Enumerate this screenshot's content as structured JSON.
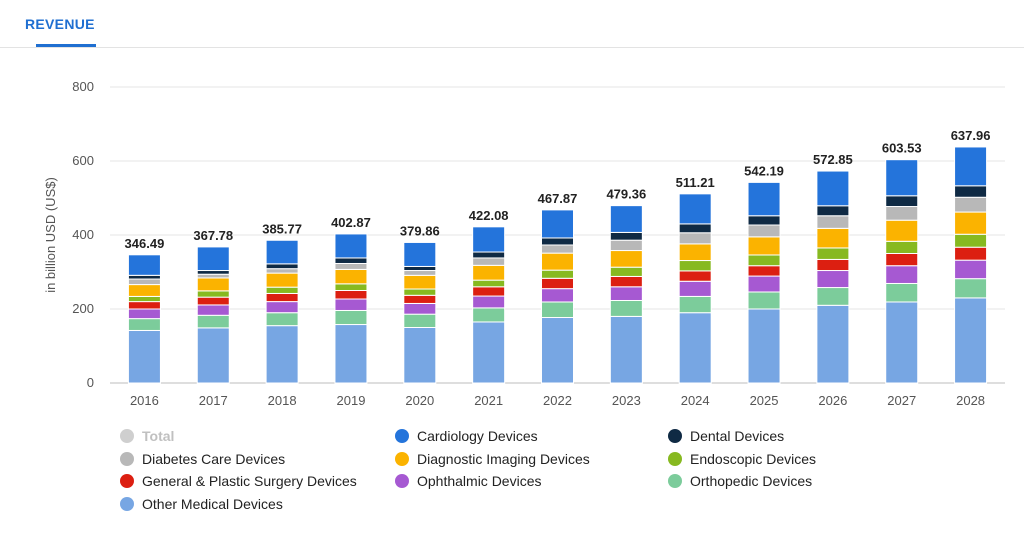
{
  "tab": {
    "label": "REVENUE"
  },
  "chart_data": {
    "type": "bar",
    "stacked": true,
    "ylabel": "in billion USD (US$)",
    "ylim": [
      0,
      800
    ],
    "yticks": [
      0,
      200,
      400,
      600,
      800
    ],
    "grid": true,
    "legend_position": "bottom",
    "categories": [
      "2016",
      "2017",
      "2018",
      "2019",
      "2020",
      "2021",
      "2022",
      "2023",
      "2024",
      "2025",
      "2026",
      "2027",
      "2028"
    ],
    "totals": [
      346.49,
      367.78,
      385.77,
      402.87,
      379.86,
      422.08,
      467.87,
      479.36,
      511.21,
      542.19,
      572.85,
      603.53,
      637.96
    ],
    "total_labels": [
      "346.49",
      "367.78",
      "385.77",
      "402.87",
      "379.86",
      "422.08",
      "467.87",
      "479.36",
      "511.21",
      "542.19",
      "572.85",
      "603.53",
      "637.96"
    ],
    "series": [
      {
        "name": "Other Medical Devices",
        "color": "#77a6e3",
        "values": [
          142,
          149,
          155,
          158,
          150,
          165,
          177,
          180,
          190,
          200,
          210,
          219,
          230
        ]
      },
      {
        "name": "Orthopedic Devices",
        "color": "#7ccc9b",
        "values": [
          32,
          34,
          35,
          38,
          36,
          38,
          42,
          43,
          44,
          46,
          48,
          50,
          52
        ]
      },
      {
        "name": "Ophthalmic Devices",
        "color": "#a659d2",
        "values": [
          26,
          28,
          30,
          31,
          29,
          32,
          36,
          37,
          41,
          43,
          46,
          48,
          50
        ]
      },
      {
        "name": "General & Plastic Surgery Devices",
        "color": "#dc1f11",
        "values": [
          20,
          21,
          22,
          23,
          22,
          25,
          28,
          28,
          28,
          28,
          30,
          33,
          35
        ]
      },
      {
        "name": "Endoscopic Devices",
        "color": "#87b920",
        "values": [
          14,
          17,
          17,
          18,
          17,
          18,
          22,
          25,
          28,
          29,
          31,
          33,
          35
        ]
      },
      {
        "name": "Diagnostic Imaging Devices",
        "color": "#fbb300",
        "values": [
          32,
          35,
          38,
          39,
          37,
          40,
          46,
          45,
          45,
          49,
          53,
          57,
          60
        ]
      },
      {
        "name": "Diabetes Care Devices",
        "color": "#b8b8b8",
        "values": [
          15,
          10,
          12,
          16,
          13,
          20,
          22,
          28,
          30,
          32,
          34,
          37,
          40
        ]
      },
      {
        "name": "Dental Devices",
        "color": "#0f2a44",
        "values": [
          10,
          10,
          13,
          15,
          11,
          16,
          19,
          21,
          24,
          25,
          27,
          29,
          31
        ]
      },
      {
        "name": "Cardiology Devices",
        "color": "#2474db",
        "values": [
          55.49,
          63.78,
          63.77,
          64.87,
          64.86,
          68.08,
          75.87,
          72.36,
          81.21,
          90.19,
          93.85,
          97.53,
          104.96
        ]
      }
    ]
  },
  "legend": [
    {
      "label": "Total",
      "color": "#cfcfcf",
      "active": false
    },
    {
      "label": "Cardiology Devices",
      "color": "#2474db",
      "active": true
    },
    {
      "label": "Dental Devices",
      "color": "#0f2a44",
      "active": true
    },
    {
      "label": "Diabetes Care Devices",
      "color": "#b8b8b8",
      "active": true
    },
    {
      "label": "Diagnostic Imaging Devices",
      "color": "#fbb300",
      "active": true
    },
    {
      "label": "Endoscopic Devices",
      "color": "#87b920",
      "active": true
    },
    {
      "label": "General & Plastic Surgery Devices",
      "color": "#dc1f11",
      "active": true
    },
    {
      "label": "Ophthalmic Devices",
      "color": "#a659d2",
      "active": true
    },
    {
      "label": "Orthopedic Devices",
      "color": "#7ccc9b",
      "active": true
    },
    {
      "label": "Other Medical Devices",
      "color": "#77a6e3",
      "active": true
    }
  ]
}
